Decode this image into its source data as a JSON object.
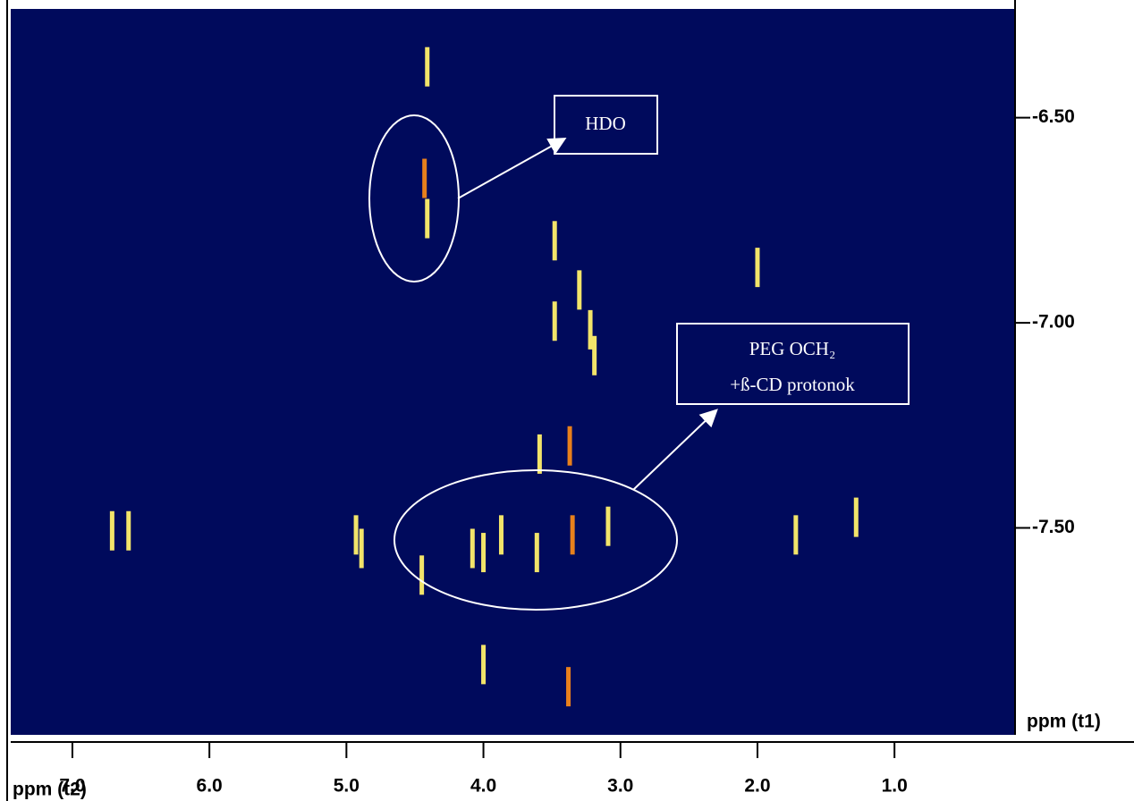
{
  "chart_data": {
    "type": "spectrum2d",
    "xlabel": "ppm (t2)",
    "ylabel": "ppm (t1)",
    "xlim": [
      7.45,
      0.12
    ],
    "ylim": [
      -8.0,
      -6.235
    ],
    "xticks": [
      {
        "value": 7,
        "label": "7.0"
      },
      {
        "value": 6,
        "label": "6.0"
      },
      {
        "value": 5,
        "label": "5.0"
      },
      {
        "value": 4,
        "label": "4.0"
      },
      {
        "value": 3,
        "label": "3.0"
      },
      {
        "value": 2,
        "label": "2.0"
      },
      {
        "value": 1,
        "label": "1.0"
      }
    ],
    "yticks": [
      {
        "value": -6.5,
        "label": "-6.50"
      },
      {
        "value": -7,
        "label": "-7.00"
      },
      {
        "value": -7.5,
        "label": "-7.50"
      }
    ],
    "background": "#000a5c",
    "series": [
      {
        "color": "#f2e46a",
        "x": [
          4.41,
          4.41,
          3.48,
          3.48,
          3.3,
          3.22,
          3.19,
          2.0,
          3.59,
          3.61,
          3.09,
          3.87,
          4.0,
          4.08,
          4.89,
          4.93,
          4.45,
          6.71,
          6.59,
          1.72,
          1.28,
          4.0
        ],
        "values": [
          -6.376,
          -6.746,
          -6.8,
          -6.996,
          -6.92,
          -7.017,
          -7.08,
          -6.865,
          -7.32,
          -7.56,
          -7.496,
          -7.517,
          -7.56,
          -7.55,
          -7.55,
          -7.517,
          -7.615,
          -7.507,
          -7.507,
          -7.517,
          -7.474,
          -7.833
        ]
      },
      {
        "color": "#e8801c",
        "x": [
          4.43,
          3.35,
          3.37,
          3.38
        ],
        "values": [
          -6.648,
          -7.517,
          -7.3,
          -7.887
        ]
      }
    ],
    "annotations": [
      {
        "text": "HDO"
      },
      {
        "text": "PEG OCH₂"
      },
      {
        "text": "+ß-CD protonok"
      }
    ]
  }
}
